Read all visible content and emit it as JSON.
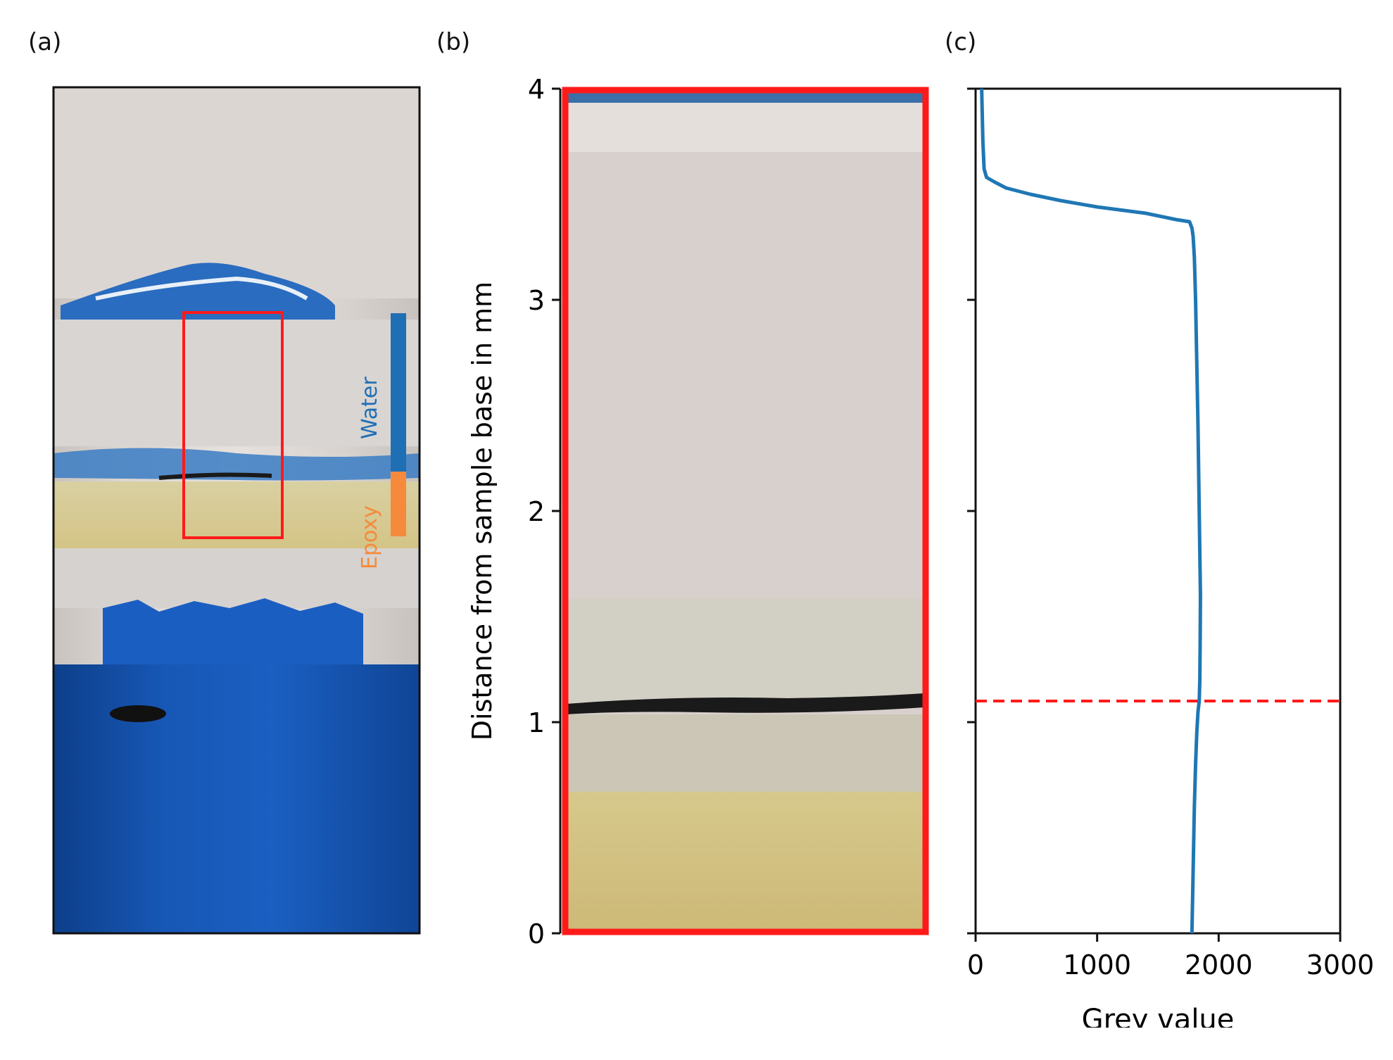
{
  "figure": {
    "panel_labels": [
      "(a)",
      "(b)",
      "(c)"
    ],
    "photo_labels": {
      "water": "Water",
      "epoxy": "Epoxy"
    },
    "colors": {
      "water": "#1f6fb5",
      "epoxy": "#f58a3c",
      "roi": "#ff1a1a",
      "line": "#1f77b4",
      "marker": "#ff1a1a"
    }
  },
  "chart_data": [
    {
      "type": "image",
      "panel": "(b)",
      "ylabel": "Distance from sample base in mm",
      "ylim": [
        0,
        4
      ],
      "yticks": [
        0,
        1,
        2,
        3,
        4
      ],
      "ytick_labels": [
        "0",
        "1",
        "2",
        "3",
        "4"
      ]
    },
    {
      "type": "line",
      "panel": "(c)",
      "xlabel": "Grey value",
      "ylabel": "",
      "xlim": [
        0,
        3000
      ],
      "ylim": [
        0,
        4
      ],
      "xticks": [
        0,
        1000,
        2000,
        3000
      ],
      "xtick_labels": [
        "0",
        "1000",
        "2000",
        "3000"
      ],
      "yticks": [
        0,
        1,
        2,
        3,
        4
      ],
      "series": [
        {
          "x": [
            1780,
            1790,
            1800,
            1810,
            1820,
            1830,
            1840,
            1845,
            1848,
            1850,
            1840,
            1830,
            1820,
            1810,
            1800,
            1790,
            1780,
            1760,
            1650,
            1400,
            1000,
            700,
            450,
            250,
            150,
            90,
            70,
            60,
            50
          ],
          "y": [
            0.0,
            0.3,
            0.6,
            0.8,
            0.95,
            1.05,
            1.1,
            1.2,
            1.4,
            1.6,
            2.0,
            2.4,
            2.7,
            3.0,
            3.2,
            3.3,
            3.34,
            3.37,
            3.38,
            3.41,
            3.44,
            3.47,
            3.5,
            3.53,
            3.56,
            3.58,
            3.62,
            3.75,
            4.0
          ]
        }
      ],
      "hline": {
        "y": 1.1,
        "style": "dashed"
      }
    }
  ]
}
